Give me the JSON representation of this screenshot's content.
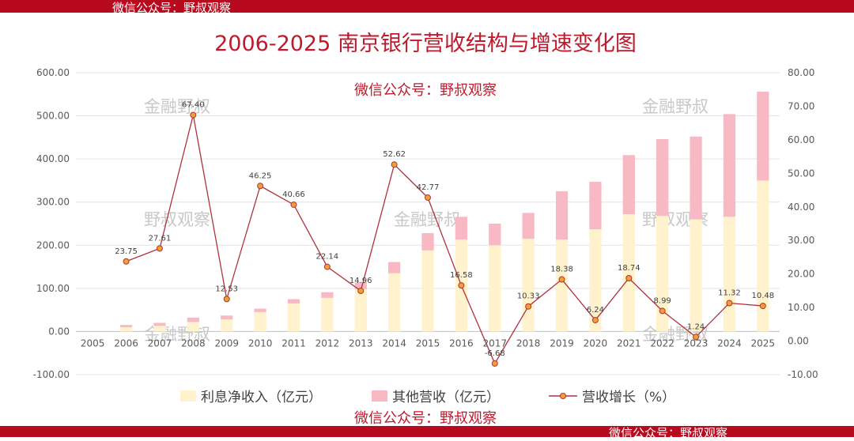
{
  "watermarks": {
    "top_bar": "微信公众号：野叔观察",
    "bottom_bar": "微信公众号：野叔观察",
    "red_center": "微信公众号：野叔观察",
    "red_bottom": "微信公众号：野叔观察",
    "gray_1": "金融野叔",
    "gray_2": "野叔观察"
  },
  "colors": {
    "bar_accent": "#b80a1e",
    "title": "#c0192c",
    "interest": "#fff2cc",
    "other": "#f8b9c4",
    "line": "#b0323c",
    "marker": "#f0a030"
  },
  "chart_data": {
    "type": "bar",
    "stacked": true,
    "title": "2006-2025 南京银行营收结构与增速变化图",
    "categories": [
      "2005",
      "2006",
      "2007",
      "2008",
      "2009",
      "2010",
      "2011",
      "2012",
      "2013",
      "2014",
      "2015",
      "2016",
      "2017",
      "2018",
      "2019",
      "2020",
      "2021",
      "2022",
      "2023",
      "2024",
      "2025"
    ],
    "left_axis": {
      "min": -100,
      "max": 600,
      "step": 100,
      "tick_labels": [
        "-100.00",
        "0.00",
        "100.00",
        "200.00",
        "300.00",
        "400.00",
        "500.00",
        "600.00"
      ]
    },
    "right_axis": {
      "min": -10,
      "max": 80,
      "step": 10,
      "tick_labels": [
        "-10.00",
        "0.00",
        "10.00",
        "20.00",
        "30.00",
        "40.00",
        "50.00",
        "60.00",
        "70.00",
        "80.00"
      ]
    },
    "series": [
      {
        "name": "利息净收入（亿元）",
        "kind": "bar",
        "axis": "left",
        "values": [
          null,
          10,
          13,
          22,
          28,
          45,
          65,
          78,
          98,
          135,
          188,
          213,
          200,
          215,
          213,
          237,
          272,
          268,
          260,
          266,
          350
        ]
      },
      {
        "name": "其他营收（亿元）",
        "kind": "bar",
        "axis": "left",
        "values": [
          null,
          5,
          7,
          10,
          9,
          8,
          10,
          13,
          16,
          26,
          40,
          53,
          50,
          60,
          112,
          110,
          137,
          178,
          192,
          238,
          206
        ]
      },
      {
        "name": "营收增长（%）",
        "kind": "line",
        "axis": "right",
        "values": [
          null,
          23.75,
          27.61,
          67.4,
          12.53,
          46.25,
          40.66,
          22.14,
          14.96,
          52.62,
          42.77,
          16.58,
          -6.68,
          10.33,
          18.38,
          6.24,
          18.74,
          8.99,
          1.24,
          11.32,
          10.48
        ],
        "labels": [
          "",
          "23.75",
          "27.61",
          "67.40",
          "12.53",
          "46.25",
          "40.66",
          "22.14",
          "14.96",
          "52.62",
          "42.77",
          "16.58",
          "-6.68",
          "10.33",
          "18.38",
          "6.24",
          "18.74",
          "8.99",
          "1.24",
          "11.32",
          "10.48"
        ]
      }
    ],
    "grid": true,
    "legend_position": "bottom"
  }
}
